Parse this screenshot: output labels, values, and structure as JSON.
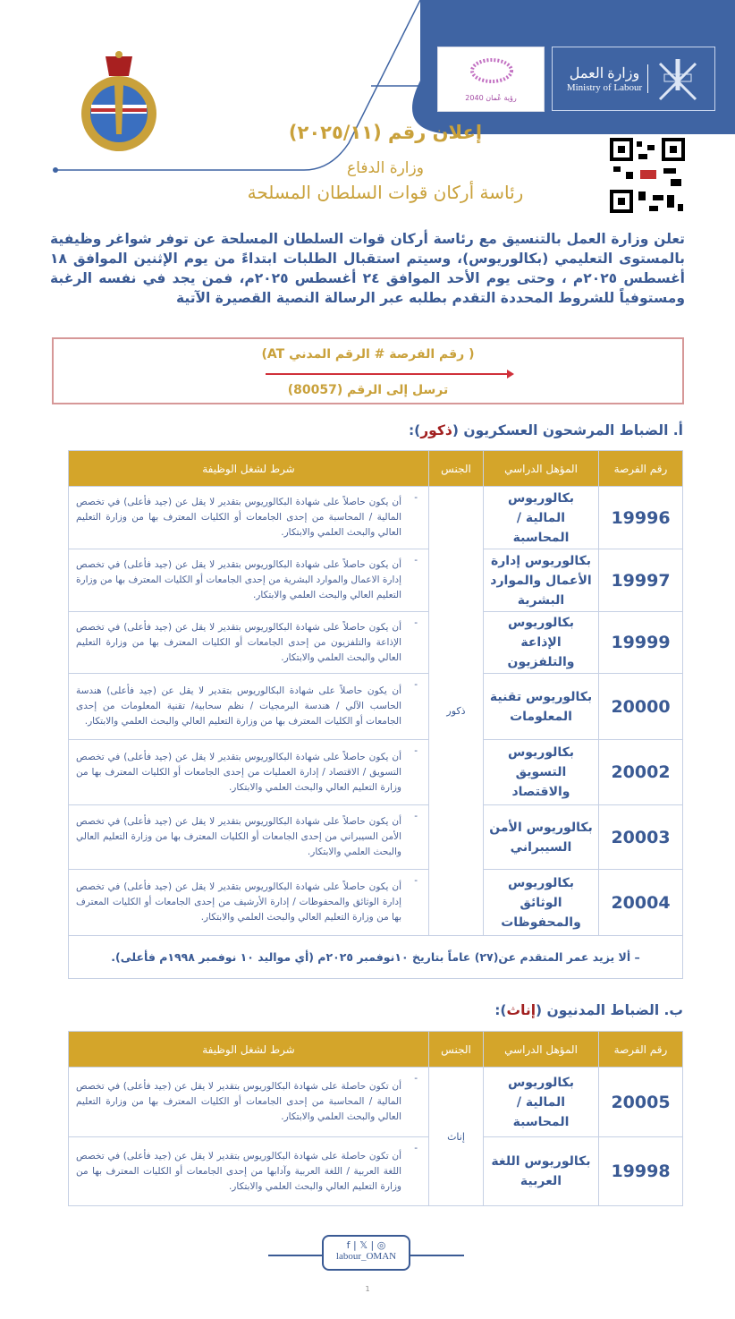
{
  "header": {
    "ministry_ar": "وزارة العمل",
    "ministry_en": "Ministry of Labour",
    "vision_logo_text": "رؤية عُمان 2040",
    "brand_blue": "#3f64a3",
    "accent_gold": "#d4a52a"
  },
  "titles": {
    "announcement": "إعلان رقم (٢٠٢٥/١١)",
    "ministry": "وزارة الدفاع",
    "org": "رئاسة أركان قوات السلطان المسلحة"
  },
  "intro": "تعلن وزارة العمل بالتنسيق مع رئاسة أركان قوات السلطان المسلحة عن توفر شواغر وظيفية بالمستوى التعليمي (بكالوريوس)، وسيتم استقبال الطلبات ابتداءً من يوم الإثنين الموافق ١٨ أغسطس ٢٠٢٥م ، وحتى يوم الأحد الموافق ٢٤ أغسطس ٢٠٢٥م، فمن يجد في نفسه الرغبة ومستوفياً للشروط المحددة التقدم بطلبه عبر الرسالة النصية القصيرة الآتية",
  "sms": {
    "format": "( رقم الفرصة # الرقم المدني AT)",
    "send_to": "ترسل إلى الرقم (80057)"
  },
  "section_a": {
    "title": "أ. الضباط المرشحون العسكريون (",
    "highlight": "ذكور",
    "end": "):"
  },
  "section_b": {
    "title": "ب. الضباط المدنيون (",
    "highlight": "إناث",
    "end": "):"
  },
  "columns": [
    "رقم الفرصة",
    "المؤهل الدراسي",
    "الجنس",
    "شرط لشغل الوظيفة"
  ],
  "table_a": {
    "gender": "ذكور",
    "rows": [
      {
        "id": "19996",
        "qual": "بكالوريوس المالية / المحاسبة",
        "cond": "أن يكون حاصلاً على شهادة البكالوريوس بتقدير لا يقل عن (جيد فأعلى) في تخصص المالية / المحاسبة من إحدى الجامعات أو الكليات المعترف بها من وزارة التعليم العالي والبحث العلمي والابتكار."
      },
      {
        "id": "19997",
        "qual": "بكالوريوس إدارة الأعمال والموارد البشرية",
        "cond": "أن يكون حاصلاً على شهادة البكالوريوس بتقدير لا يقل عن (جيد فأعلى) في تخصص إدارة الاعمال والموارد البشرية من إحدى الجامعات أو الكليات المعترف بها من وزارة التعليم العالي والبحث العلمي والابتكار."
      },
      {
        "id": "19999",
        "qual": "بكالوريوس الإذاعة والتلفزيون",
        "cond": "أن يكون حاصلاً على شهادة البكالوريوس بتقدير لا يقل عن (جيد فأعلى) في تخصص الإذاعة والتلفزيون من إحدى الجامعات أو الكليات المعترف بها من وزارة التعليم العالي والبحث العلمي والابتكار."
      },
      {
        "id": "20000",
        "qual": "بكالوريوس تقنية المعلومات",
        "cond": "أن يكون حاصلاً على شهادة البكالوريوس بتقدير لا يقل عن (جيد فأعلى) هندسة الحاسب الآلي / هندسة البرمجيات / نظم سحابية/ تقنية المعلومات من إحدى الجامعات أو الكليات المعترف بها من وزارة التعليم العالي والبحث العلمي والابتكار."
      },
      {
        "id": "20002",
        "qual": "بكالوريوس التسويق والاقتصاد",
        "cond": "أن يكون حاصلاً على شهادة البكالوريوس بتقدير لا يقل عن (جيد فأعلى) في تخصص التسويق / الاقتصاد / إدارة العمليات من إحدى الجامعات أو الكليات المعترف بها من وزارة التعليم العالي والبحث العلمي والابتكار."
      },
      {
        "id": "20003",
        "qual": "بكالوريوس الأمن السيبراني",
        "cond": "أن يكون حاصلاً على شهادة البكالوريوس بتقدير لا يقل عن (جيد فأعلى) في تخصص الأمن السيبراني من إحدى الجامعات أو الكليات المعترف بها من وزارة التعليم العالي والبحث العلمي والابتكار."
      },
      {
        "id": "20004",
        "qual": "بكالوريوس الوثائق والمحفوظات",
        "cond": "أن يكون حاصلاً على شهادة البكالوريوس بتقدير لا يقل عن (جيد فأعلى) في تخصص إدارة الوثائق والمحفوظات / إدارة الأرشيف من إحدى الجامعات أو الكليات المعترف بها من وزارة التعليم العالي والبحث العلمي والابتكار."
      }
    ],
    "note": "– ألا يزيد عمر المتقدم عن(٢٧) عاماً بتاريخ ١٠نوفمبر ٢٠٢٥م (أي مواليد ١٠ نوفمبر ١٩٩٨م فأعلى)."
  },
  "table_b": {
    "gender": "إناث",
    "rows": [
      {
        "id": "20005",
        "qual": "بكالوريوس المالية / المحاسبة",
        "cond": "أن تكون حاصلة على شهادة البكالوريوس بتقدير لا يقل عن (جيد فأعلى) في تخصص المالية / المحاسبة من إحدى الجامعات أو الكليات المعترف بها من وزارة التعليم العالي والبحث العلمي والابتكار."
      },
      {
        "id": "19998",
        "qual": "بكالوريوس اللغة العربية",
        "cond": "أن تكون حاصلة على شهادة البكالوريوس بتقدير لا يقل عن (جيد فأعلى) في تخصص اللغة العربية / اللغة العربية وآدابها من إحدى الجامعات أو الكليات المعترف بها من وزارة التعليم العالي والبحث العلمي والابتكار."
      }
    ]
  },
  "footer": {
    "handle": "labour_OMAN",
    "icons": [
      "facebook-icon",
      "x-icon",
      "instagram-icon"
    ],
    "page_number": "1"
  }
}
